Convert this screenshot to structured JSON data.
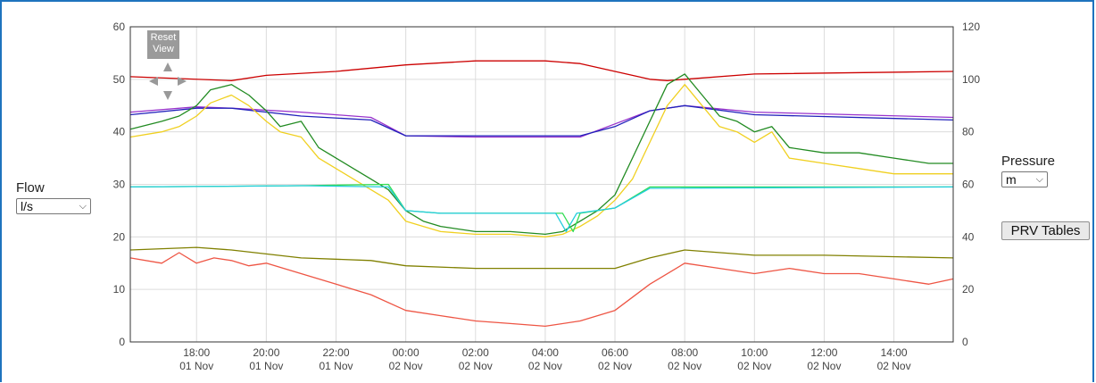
{
  "controls": {
    "flow_label": "Flow",
    "flow_unit": "l/s",
    "pressure_label": "Pressure",
    "pressure_unit": "m",
    "prv_tables_label": "PRV Tables",
    "reset_view_line1": "Reset",
    "reset_view_line2": "View"
  },
  "chart_data": {
    "type": "line",
    "title": "",
    "x_ticks": [
      {
        "time": "18:00",
        "date": "01 Nov"
      },
      {
        "time": "20:00",
        "date": "01 Nov"
      },
      {
        "time": "22:00",
        "date": "01 Nov"
      },
      {
        "time": "00:00",
        "date": "02 Nov"
      },
      {
        "time": "02:00",
        "date": "02 Nov"
      },
      {
        "time": "04:00",
        "date": "02 Nov"
      },
      {
        "time": "06:00",
        "date": "02 Nov"
      },
      {
        "time": "08:00",
        "date": "02 Nov"
      },
      {
        "time": "10:00",
        "date": "02 Nov"
      },
      {
        "time": "12:00",
        "date": "02 Nov"
      },
      {
        "time": "14:00",
        "date": "02 Nov"
      }
    ],
    "x_range_hours_from_00_00_02_Nov": [
      -7.9,
      15.7
    ],
    "y_left": {
      "label": "Flow",
      "unit": "l/s",
      "ylim": [
        0,
        60
      ],
      "ticks": [
        0,
        10,
        20,
        30,
        40,
        50,
        60
      ]
    },
    "y_right": {
      "label": "Pressure",
      "unit": "m",
      "ylim": [
        0,
        120
      ],
      "ticks": [
        0,
        20,
        40,
        60,
        80,
        100,
        120
      ]
    },
    "grid": true,
    "series": [
      {
        "color": "#cc0000",
        "axis": "right",
        "x": [
          -7.9,
          -5,
          -4,
          -2,
          0,
          2,
          4,
          5,
          6,
          7,
          7.5,
          8,
          10,
          15.7
        ],
        "y": [
          101,
          99.5,
          101.5,
          103,
          105.5,
          107,
          107,
          106,
          103,
          100,
          99.5,
          100,
          102,
          103
        ]
      },
      {
        "color": "#9933cc",
        "axis": "right",
        "x": [
          -7.9,
          -6,
          -5,
          -3,
          -1,
          0,
          2,
          4,
          5,
          6,
          7,
          8,
          10,
          15.7
        ],
        "y": [
          87.5,
          89.5,
          89,
          87.5,
          85.5,
          78.5,
          78,
          78,
          78,
          83,
          88,
          90,
          87.5,
          85.5
        ]
      },
      {
        "color": "#2222bb",
        "axis": "right",
        "x": [
          -7.9,
          -6,
          -5,
          -3,
          -1,
          0,
          2,
          4,
          5,
          6,
          7,
          8,
          10,
          15.7
        ],
        "y": [
          86.5,
          89,
          89,
          86,
          84.5,
          78.5,
          78.5,
          78.5,
          78.5,
          82,
          88,
          90,
          86.5,
          84.5
        ]
      },
      {
        "color": "#228b22",
        "axis": "left",
        "x": [
          -7.9,
          -7,
          -6.5,
          -6,
          -5.6,
          -5,
          -4.5,
          -4,
          -3.6,
          -3,
          -2.5,
          -2,
          -1.5,
          -1,
          -0.5,
          0,
          0.5,
          1,
          2,
          3,
          4,
          4.5,
          5,
          5.5,
          6,
          6.5,
          7,
          7.5,
          8,
          8.5,
          9,
          9.5,
          10,
          10.5,
          11,
          12,
          13,
          14,
          15,
          15.7
        ],
        "y": [
          40.5,
          42,
          43,
          45,
          48,
          49,
          47,
          44,
          41,
          42,
          37,
          35,
          33,
          31,
          29,
          25,
          23,
          22,
          21,
          21,
          20.5,
          21,
          23,
          25,
          28,
          35,
          42,
          49,
          51,
          47,
          43,
          42,
          40,
          41,
          37,
          36,
          36,
          35,
          34,
          34
        ]
      },
      {
        "color": "#f0d020",
        "axis": "left",
        "x": [
          -7.9,
          -7,
          -6.5,
          -6,
          -5.6,
          -5,
          -4.5,
          -4,
          -3.6,
          -3,
          -2.5,
          -2,
          -1.5,
          -1,
          -0.5,
          0,
          0.5,
          1,
          2,
          3,
          4,
          4.5,
          5,
          5.5,
          6,
          6.5,
          7,
          7.5,
          8,
          8.5,
          9,
          9.5,
          10,
          10.5,
          11,
          12,
          13,
          14,
          15,
          15.7
        ],
        "y": [
          39,
          40,
          41,
          43,
          45.5,
          47,
          45,
          42,
          40,
          39,
          35,
          33,
          31,
          29,
          27,
          23,
          22,
          21,
          20.5,
          20.5,
          20,
          20.5,
          22,
          24,
          27,
          31,
          38,
          45,
          49,
          45,
          41,
          40,
          38,
          40,
          35,
          34,
          33,
          32,
          32,
          32
        ]
      },
      {
        "color": "#33dd55",
        "axis": "right",
        "x": [
          -7.9,
          -3,
          -0.5,
          0,
          1,
          3,
          4.5,
          4.8,
          5,
          6,
          7,
          15.7
        ],
        "y": [
          59,
          59.5,
          60,
          50,
          49,
          49,
          49,
          42,
          49,
          51,
          59,
          59
        ]
      },
      {
        "color": "#22ccdd",
        "axis": "right",
        "x": [
          -7.9,
          -3,
          -0.5,
          0,
          1,
          3,
          4.3,
          4.6,
          4.9,
          6,
          7,
          15.7
        ],
        "y": [
          59,
          59.5,
          59,
          50,
          49,
          49,
          49,
          42,
          49,
          51,
          58.5,
          59
        ]
      },
      {
        "color": "#808000",
        "axis": "left",
        "x": [
          -7.9,
          -6,
          -5,
          -3,
          -1,
          0,
          2,
          4,
          6,
          7,
          8,
          10,
          12,
          15.7
        ],
        "y": [
          17.5,
          18,
          17.5,
          16,
          15.5,
          14.5,
          14,
          14,
          14,
          16,
          17.5,
          16.5,
          16.5,
          16
        ]
      },
      {
        "color": "#ee5544",
        "axis": "left",
        "x": [
          -7.9,
          -7,
          -6.5,
          -6,
          -5.5,
          -5,
          -4.5,
          -4,
          -3,
          -2,
          -1,
          0,
          1,
          2,
          3,
          4,
          5,
          6,
          7,
          8,
          9,
          10,
          11,
          12,
          13,
          14,
          15,
          15.7
        ],
        "y": [
          16,
          15,
          17,
          15,
          16,
          15.5,
          14.5,
          15,
          13,
          11,
          9,
          6,
          5,
          4,
          3.5,
          3,
          4,
          6,
          11,
          15,
          14,
          13,
          14,
          13,
          13,
          12,
          11,
          12
        ]
      }
    ]
  }
}
